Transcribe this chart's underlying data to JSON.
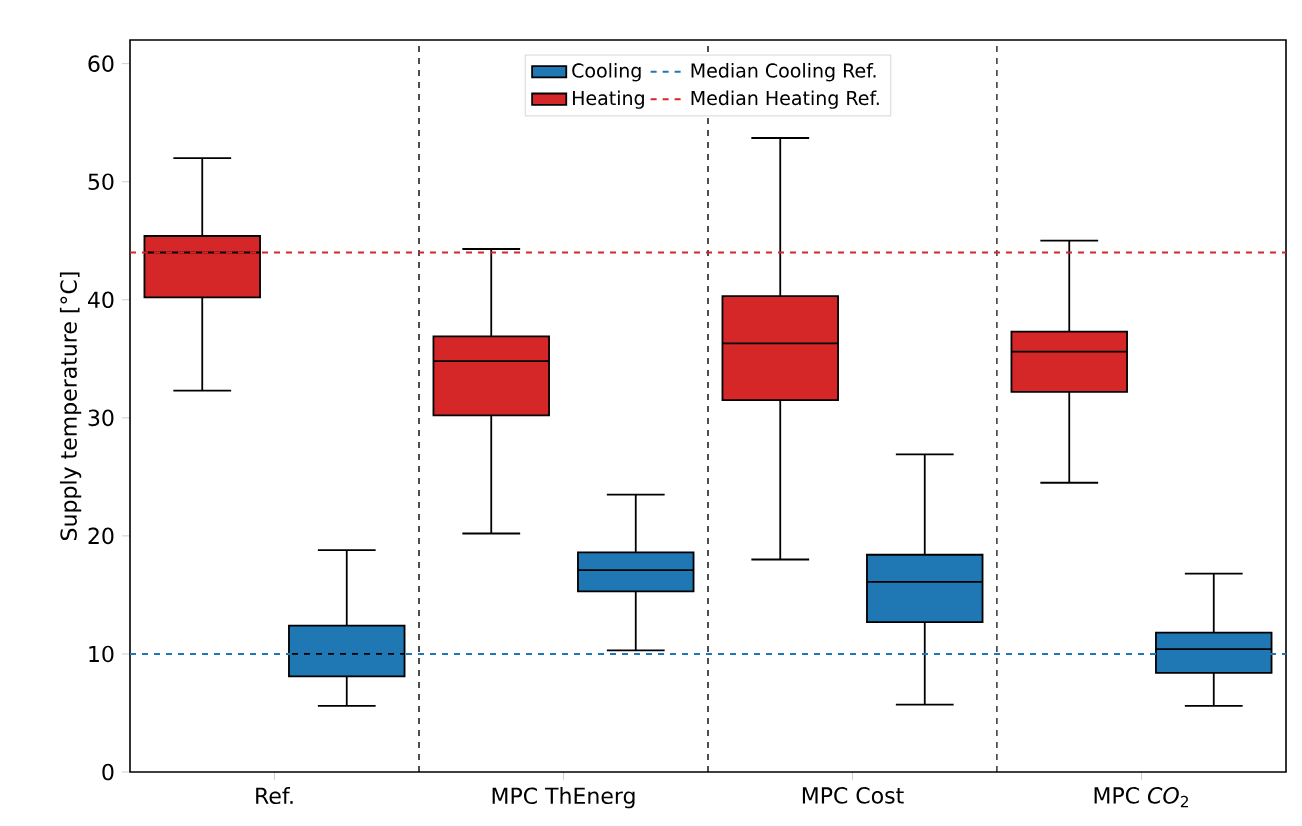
{
  "chart_data": {
    "type": "box",
    "ylabel": "Supply temperature [°C]",
    "categories": [
      "Ref.",
      "MPC ThEnerg",
      "MPC Cost",
      "MPC *CO*$_{2}$"
    ],
    "ylim": [
      0,
      62
    ],
    "yticks": [
      0,
      10,
      20,
      30,
      40,
      50,
      60
    ],
    "grid": false,
    "legend": "top",
    "series": [
      {
        "name": "Cooling",
        "color": "#1f77b4",
        "boxes": [
          {
            "low": 5.6,
            "q1": 8.1,
            "median": 10.0,
            "q3": 12.4,
            "high": 18.8
          },
          {
            "low": 10.3,
            "q1": 15.3,
            "median": 17.1,
            "q3": 18.6,
            "high": 23.5
          },
          {
            "low": 5.7,
            "q1": 12.7,
            "median": 16.1,
            "q3": 18.4,
            "high": 26.9
          },
          {
            "low": 5.6,
            "q1": 8.4,
            "median": 10.4,
            "q3": 11.8,
            "high": 16.8
          }
        ]
      },
      {
        "name": "Heating",
        "color": "#d62728",
        "boxes": [
          {
            "low": 32.3,
            "q1": 40.2,
            "median": 44.0,
            "q3": 45.4,
            "high": 52.0
          },
          {
            "low": 20.2,
            "q1": 30.2,
            "median": 34.8,
            "q3": 36.9,
            "high": 44.3
          },
          {
            "low": 18.0,
            "q1": 31.5,
            "median": 36.3,
            "q3": 40.3,
            "high": 53.7
          },
          {
            "low": 24.5,
            "q1": 32.2,
            "median": 35.6,
            "q3": 37.3,
            "high": 45.0
          }
        ]
      }
    ],
    "ref_lines": [
      {
        "axis": "y",
        "value": 10,
        "label": "Median Cooling Ref.",
        "color": "#1f77b4",
        "line_style": "dashed"
      },
      {
        "axis": "y",
        "value": 44,
        "label": "Median Heating Ref.",
        "color": "#d62728",
        "line_style": "dashed"
      }
    ]
  }
}
